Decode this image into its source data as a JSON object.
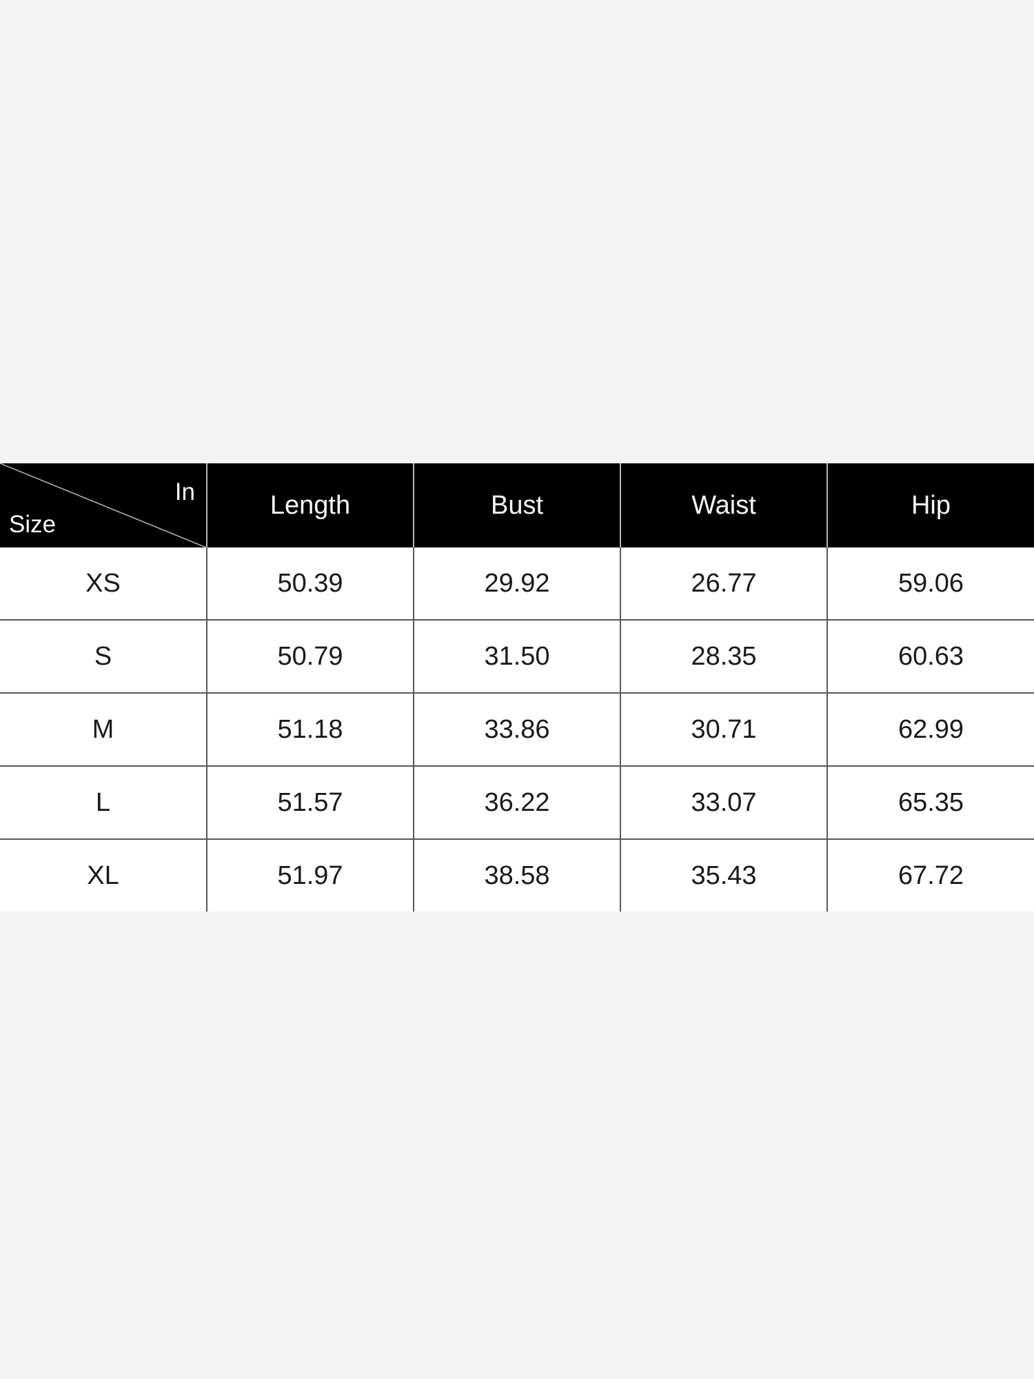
{
  "colors": {
    "page_bg": "#f4f4f4",
    "header_bg": "#000000",
    "header_text": "#f8f8f8",
    "row_bg": "#ffffff",
    "cell_text": "#1a1a1a",
    "grid_line": "#595959",
    "header_divider": "#b8b8b8"
  },
  "chart_data": {
    "type": "table",
    "corner": {
      "top_right_label": "In",
      "bottom_left_label": "Size"
    },
    "columns": [
      "Length",
      "Bust",
      "Waist",
      "Hip"
    ],
    "rows": [
      {
        "size": "XS",
        "values": [
          "50.39",
          "29.92",
          "26.77",
          "59.06"
        ]
      },
      {
        "size": "S",
        "values": [
          "50.79",
          "31.50",
          "28.35",
          "60.63"
        ]
      },
      {
        "size": "M",
        "values": [
          "51.18",
          "33.86",
          "30.71",
          "62.99"
        ]
      },
      {
        "size": "L",
        "values": [
          "51.57",
          "36.22",
          "33.07",
          "65.35"
        ]
      },
      {
        "size": "XL",
        "values": [
          "51.97",
          "38.58",
          "35.43",
          "67.72"
        ]
      }
    ]
  }
}
